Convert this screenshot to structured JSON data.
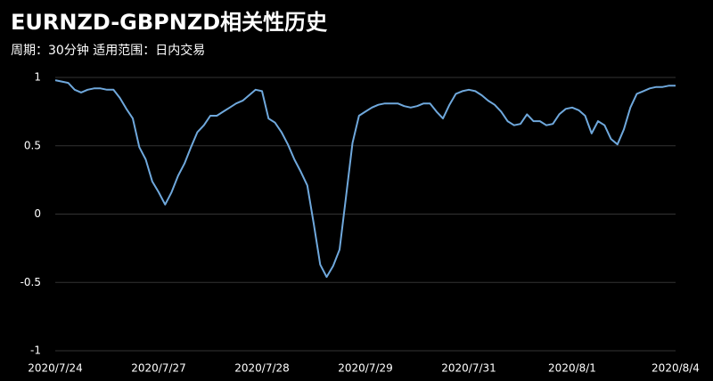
{
  "chart_data": {
    "type": "line",
    "title": "EURNZD-GBPNZD相关性历史",
    "subtitle": "周期：30分钟  适用范围：日内交易",
    "categories": [
      "2020/7/24",
      null,
      null,
      null,
      null,
      null,
      null,
      null,
      null,
      null,
      null,
      null,
      null,
      null,
      null,
      null,
      "2020/7/27",
      null,
      null,
      null,
      null,
      null,
      null,
      null,
      null,
      null,
      null,
      null,
      null,
      null,
      null,
      null,
      "2020/7/28",
      null,
      null,
      null,
      null,
      null,
      null,
      null,
      null,
      null,
      null,
      null,
      null,
      null,
      null,
      null,
      "2020/7/29",
      null,
      null,
      null,
      null,
      null,
      null,
      null,
      null,
      null,
      null,
      null,
      null,
      null,
      null,
      null,
      "2020/7/31",
      null,
      null,
      null,
      null,
      null,
      null,
      null,
      null,
      null,
      null,
      null,
      null,
      null,
      null,
      null,
      "2020/8/1",
      null,
      null,
      null,
      null,
      null,
      null,
      null,
      null,
      null,
      null,
      null,
      null,
      null,
      null,
      null,
      "2020/8/4"
    ],
    "series": [
      {
        "color": "#6fa8dc",
        "values": [
          0.98,
          0.97,
          0.96,
          0.91,
          0.89,
          0.91,
          0.92,
          0.92,
          0.91,
          0.91,
          0.85,
          0.77,
          0.7,
          0.49,
          0.4,
          0.24,
          0.16,
          0.07,
          0.16,
          0.28,
          0.37,
          0.49,
          0.6,
          0.65,
          0.72,
          0.72,
          0.75,
          0.78,
          0.81,
          0.83,
          0.87,
          0.91,
          0.9,
          0.7,
          0.67,
          0.6,
          0.51,
          0.4,
          0.31,
          0.21,
          -0.07,
          -0.37,
          -0.46,
          -0.38,
          -0.26,
          0.13,
          0.52,
          0.72,
          0.75,
          0.78,
          0.8,
          0.81,
          0.81,
          0.81,
          0.79,
          0.78,
          0.79,
          0.81,
          0.81,
          0.75,
          0.7,
          0.8,
          0.88,
          0.9,
          0.91,
          0.9,
          0.87,
          0.83,
          0.8,
          0.75,
          0.68,
          0.65,
          0.66,
          0.73,
          0.68,
          0.68,
          0.65,
          0.66,
          0.73,
          0.77,
          0.78,
          0.76,
          0.72,
          0.59,
          0.68,
          0.65,
          0.55,
          0.51,
          0.62,
          0.78,
          0.88,
          0.9,
          0.92,
          0.93,
          0.93,
          0.94,
          0.94
        ]
      }
    ],
    "ylim": [
      -1,
      1
    ],
    "yticks": [
      1,
      0.5,
      0,
      -0.5,
      -1
    ],
    "grid": true
  }
}
